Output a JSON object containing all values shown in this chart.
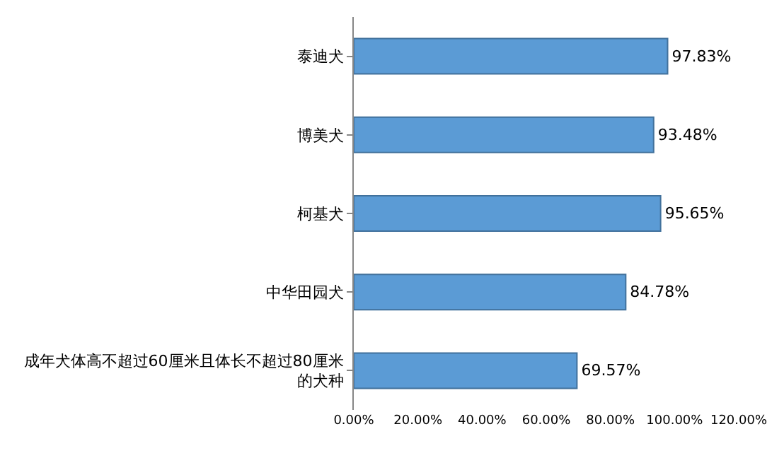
{
  "chart_data": {
    "type": "bar",
    "orientation": "horizontal",
    "categories": [
      "泰迪犬",
      "博美犬",
      "柯基犬",
      "中华田园犬",
      "成年犬体高不超过60厘米且体长不超过80厘米的犬种"
    ],
    "values": [
      97.83,
      93.48,
      95.65,
      84.78,
      69.57
    ],
    "value_labels": [
      "97.83%",
      "93.48%",
      "95.65%",
      "84.78%",
      "69.57%"
    ],
    "color": "#5b9bd5",
    "xlim": [
      0,
      120
    ],
    "xticks": [
      {
        "value": 0,
        "label": "0.00%"
      },
      {
        "value": 20,
        "label": "20.00%"
      },
      {
        "value": 40,
        "label": "40.00%"
      },
      {
        "value": 60,
        "label": "60.00%"
      },
      {
        "value": 80,
        "label": "80.00%"
      },
      {
        "value": 100,
        "label": "100.00%"
      },
      {
        "value": 120,
        "label": "120.00%"
      }
    ],
    "legend": false
  }
}
